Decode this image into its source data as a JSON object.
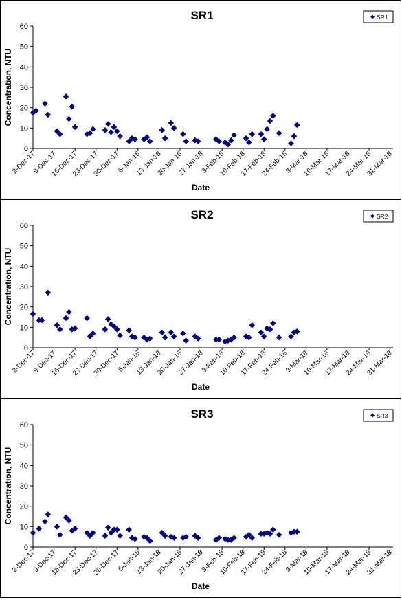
{
  "chart_data": [
    {
      "type": "scatter",
      "title": "SR1",
      "xlabel": "Date",
      "ylabel": "Concentration, NTU",
      "ylim": [
        0,
        60
      ],
      "yticks": [
        "0",
        "10",
        "20",
        "30",
        "40",
        "50",
        "60"
      ],
      "xticks": [
        "2-Dec-17",
        "9-Dec-17",
        "16-Dec-17",
        "23-Dec-17",
        "30-Dec-17",
        "6-Jan-18",
        "13-Jan-18",
        "20-Jan-18",
        "27-Jan-18",
        "3-Feb-18",
        "10-Feb-18",
        "17-Feb-18",
        "24-Feb-18",
        "3-Mar-18",
        "10-Mar-18",
        "17-Mar-18",
        "24-Mar-18",
        "31-Mar-18"
      ],
      "legend": "top-right",
      "series": [
        {
          "name": "SR1",
          "color": "#000080",
          "marker": "diamond",
          "points": [
            [
              "2-Dec-17",
              17.5
            ],
            [
              "3-Dec-17",
              18.5
            ],
            [
              "6-Dec-17",
              22
            ],
            [
              "7-Dec-17",
              16.5
            ],
            [
              "10-Dec-17",
              8.5
            ],
            [
              "11-Dec-17",
              7
            ],
            [
              "13-Dec-17",
              25.5
            ],
            [
              "14-Dec-17",
              14.5
            ],
            [
              "15-Dec-17",
              20.5
            ],
            [
              "16-Dec-17",
              10.5
            ],
            [
              "20-Dec-17",
              7
            ],
            [
              "21-Dec-17",
              7.5
            ],
            [
              "22-Dec-17",
              9.5
            ],
            [
              "26-Dec-17",
              9
            ],
            [
              "27-Dec-17",
              12
            ],
            [
              "28-Dec-17",
              8
            ],
            [
              "29-Dec-17",
              10.5
            ],
            [
              "30-Dec-17",
              8.5
            ],
            [
              "31-Dec-17",
              6
            ],
            [
              "3-Jan-18",
              3.5
            ],
            [
              "4-Jan-18",
              5
            ],
            [
              "5-Jan-18",
              4.5
            ],
            [
              "8-Jan-18",
              4.5
            ],
            [
              "9-Jan-18",
              5.5
            ],
            [
              "10-Jan-18",
              3.5
            ],
            [
              "14-Jan-18",
              9
            ],
            [
              "15-Jan-18",
              5
            ],
            [
              "17-Jan-18",
              12.5
            ],
            [
              "18-Jan-18",
              10
            ],
            [
              "21-Jan-18",
              7
            ],
            [
              "22-Jan-18",
              3.5
            ],
            [
              "25-Jan-18",
              4
            ],
            [
              "26-Jan-18",
              3.5
            ],
            [
              "1-Feb-18",
              4.5
            ],
            [
              "2-Feb-18",
              3.5
            ],
            [
              "4-Feb-18",
              3
            ],
            [
              "5-Feb-18",
              2
            ],
            [
              "6-Feb-18",
              4
            ],
            [
              "7-Feb-18",
              6.5
            ],
            [
              "11-Feb-18",
              5
            ],
            [
              "12-Feb-18",
              3
            ],
            [
              "13-Feb-18",
              7
            ],
            [
              "16-Feb-18",
              7
            ],
            [
              "17-Feb-18",
              4.5
            ],
            [
              "18-Feb-18",
              9.5
            ],
            [
              "19-Feb-18",
              13.5
            ],
            [
              "20-Feb-18",
              16
            ],
            [
              "22-Feb-18",
              7.5
            ],
            [
              "26-Feb-18",
              2.5
            ],
            [
              "27-Feb-18",
              6
            ],
            [
              "28-Feb-18",
              11.5
            ]
          ]
        }
      ]
    },
    {
      "type": "scatter",
      "title": "SR2",
      "xlabel": "Date",
      "ylabel": "Concentration, NTU",
      "ylim": [
        0,
        60
      ],
      "yticks": [
        "0",
        "10",
        "20",
        "30",
        "40",
        "50",
        "60"
      ],
      "xticks": [
        "2-Dec-17",
        "9-Dec-17",
        "16-Dec-17",
        "23-Dec-17",
        "30-Dec-17",
        "6-Jan-18",
        "13-Jan-18",
        "20-Jan-18",
        "27-Jan-18",
        "3-Feb-18",
        "10-Feb-18",
        "17-Feb-18",
        "24-Feb-18",
        "3-Mar-18",
        "10-Mar-18",
        "17-Mar-18",
        "24-Mar-18",
        "31-Mar-18"
      ],
      "legend": "top-right",
      "series": [
        {
          "name": "SR2",
          "color": "#000080",
          "marker": "diamond",
          "points": [
            [
              "2-Dec-17",
              16.5
            ],
            [
              "4-Dec-17",
              13.5
            ],
            [
              "5-Dec-17",
              13.5
            ],
            [
              "7-Dec-17",
              27
            ],
            [
              "10-Dec-17",
              11
            ],
            [
              "11-Dec-17",
              9
            ],
            [
              "13-Dec-17",
              14.5
            ],
            [
              "14-Dec-17",
              17.5
            ],
            [
              "15-Dec-17",
              9
            ],
            [
              "16-Dec-17",
              9.5
            ],
            [
              "20-Dec-17",
              14.5
            ],
            [
              "21-Dec-17",
              5.5
            ],
            [
              "22-Dec-17",
              7
            ],
            [
              "26-Dec-17",
              9
            ],
            [
              "27-Dec-17",
              14
            ],
            [
              "28-Dec-17",
              11.5
            ],
            [
              "29-Dec-17",
              10.5
            ],
            [
              "30-Dec-17",
              9
            ],
            [
              "31-Dec-17",
              6
            ],
            [
              "3-Jan-18",
              8.5
            ],
            [
              "4-Jan-18",
              5.5
            ],
            [
              "5-Jan-18",
              5
            ],
            [
              "8-Jan-18",
              5
            ],
            [
              "9-Jan-18",
              4
            ],
            [
              "10-Jan-18",
              4.5
            ],
            [
              "14-Jan-18",
              7.5
            ],
            [
              "15-Jan-18",
              5
            ],
            [
              "17-Jan-18",
              7.5
            ],
            [
              "18-Jan-18",
              5.5
            ],
            [
              "21-Jan-18",
              7
            ],
            [
              "22-Jan-18",
              3.5
            ],
            [
              "25-Jan-18",
              5.5
            ],
            [
              "26-Jan-18",
              4.5
            ],
            [
              "1-Feb-18",
              4
            ],
            [
              "2-Feb-18",
              4
            ],
            [
              "4-Feb-18",
              3
            ],
            [
              "5-Feb-18",
              3.5
            ],
            [
              "6-Feb-18",
              4
            ],
            [
              "7-Feb-18",
              5
            ],
            [
              "11-Feb-18",
              5.5
            ],
            [
              "12-Feb-18",
              5
            ],
            [
              "13-Feb-18",
              11
            ],
            [
              "16-Feb-18",
              7.5
            ],
            [
              "17-Feb-18",
              5.5
            ],
            [
              "18-Feb-18",
              9.5
            ],
            [
              "19-Feb-18",
              9
            ],
            [
              "20-Feb-18",
              12
            ],
            [
              "22-Feb-18",
              5
            ],
            [
              "26-Feb-18",
              5.5
            ],
            [
              "27-Feb-18",
              7.5
            ],
            [
              "28-Feb-18",
              8
            ]
          ]
        }
      ]
    },
    {
      "type": "scatter",
      "title": "SR3",
      "xlabel": "Date",
      "ylabel": "Concentration, NTU",
      "ylim": [
        0,
        60
      ],
      "yticks": [
        "0",
        "10",
        "20",
        "30",
        "40",
        "50",
        "60"
      ],
      "xticks": [
        "2-Dec-17",
        "9-Dec-17",
        "16-Dec-17",
        "23-Dec-17",
        "30-Dec-17",
        "6-Jan-18",
        "13-Jan-18",
        "20-Jan-18",
        "27-Jan-18",
        "3-Feb-18",
        "10-Feb-18",
        "17-Feb-18",
        "24-Feb-18",
        "3-Mar-18",
        "10-Mar-18",
        "17-Mar-18",
        "24-Mar-18",
        "31-Mar-18"
      ],
      "legend": "top-right",
      "series": [
        {
          "name": "SR3",
          "color": "#000080",
          "marker": "diamond",
          "points": [
            [
              "2-Dec-17",
              7
            ],
            [
              "4-Dec-17",
              9
            ],
            [
              "6-Dec-17",
              12.5
            ],
            [
              "7-Dec-17",
              16
            ],
            [
              "10-Dec-17",
              10
            ],
            [
              "11-Dec-17",
              6
            ],
            [
              "13-Dec-17",
              14.5
            ],
            [
              "14-Dec-17",
              13
            ],
            [
              "15-Dec-17",
              8
            ],
            [
              "16-Dec-17",
              9
            ],
            [
              "20-Dec-17",
              7
            ],
            [
              "21-Dec-17",
              5.5
            ],
            [
              "22-Dec-17",
              7
            ],
            [
              "26-Dec-17",
              5.5
            ],
            [
              "27-Dec-17",
              9.5
            ],
            [
              "28-Dec-17",
              7
            ],
            [
              "29-Dec-17",
              8.5
            ],
            [
              "30-Dec-17",
              8.5
            ],
            [
              "31-Dec-17",
              5.5
            ],
            [
              "3-Jan-18",
              8.5
            ],
            [
              "4-Jan-18",
              4.5
            ],
            [
              "5-Jan-18",
              4
            ],
            [
              "8-Jan-18",
              5
            ],
            [
              "9-Jan-18",
              4.5
            ],
            [
              "10-Jan-18",
              3
            ],
            [
              "14-Jan-18",
              7
            ],
            [
              "15-Jan-18",
              5.5
            ],
            [
              "17-Jan-18",
              5
            ],
            [
              "18-Jan-18",
              4.5
            ],
            [
              "21-Jan-18",
              4.5
            ],
            [
              "22-Jan-18",
              5
            ],
            [
              "25-Jan-18",
              5.5
            ],
            [
              "26-Jan-18",
              4.5
            ],
            [
              "1-Feb-18",
              3.5
            ],
            [
              "2-Feb-18",
              4.5
            ],
            [
              "4-Feb-18",
              4
            ],
            [
              "5-Feb-18",
              3.5
            ],
            [
              "6-Feb-18",
              3.5
            ],
            [
              "7-Feb-18",
              4.5
            ],
            [
              "11-Feb-18",
              5
            ],
            [
              "12-Feb-18",
              6
            ],
            [
              "13-Feb-18",
              4.5
            ],
            [
              "16-Feb-18",
              6.5
            ],
            [
              "17-Feb-18",
              6.5
            ],
            [
              "18-Feb-18",
              7
            ],
            [
              "19-Feb-18",
              6.5
            ],
            [
              "20-Feb-18",
              8.5
            ],
            [
              "22-Feb-18",
              6
            ],
            [
              "26-Feb-18",
              7
            ],
            [
              "27-Feb-18",
              7.5
            ],
            [
              "28-Feb-18",
              7.5
            ]
          ]
        }
      ]
    }
  ]
}
